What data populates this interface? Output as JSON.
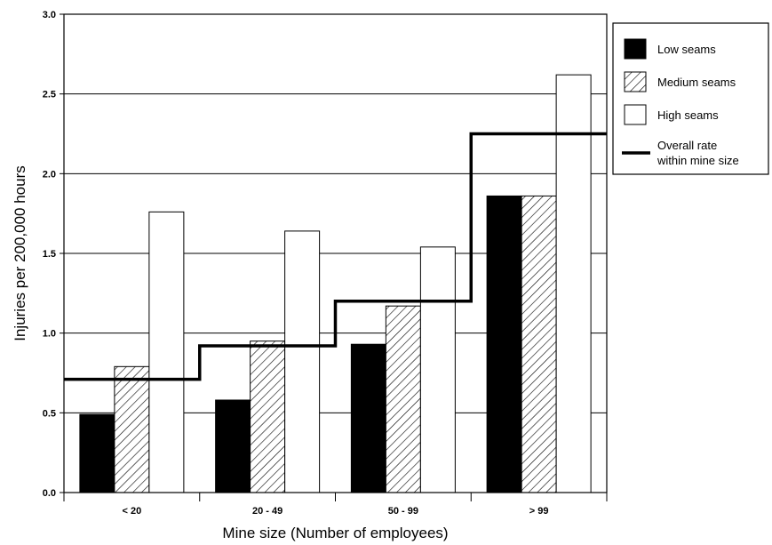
{
  "chart_data": {
    "type": "bar",
    "title": "",
    "xlabel": "Mine size (Number of employees)",
    "ylabel": "Injuries per 200,000 hours",
    "categories": [
      "< 20",
      "20 - 49",
      "50 - 99",
      "> 99"
    ],
    "ylim": [
      0,
      3.0
    ],
    "yticks": [
      "0.0",
      "0.5",
      "1.0",
      "1.5",
      "2.0",
      "2.5",
      "3.0"
    ],
    "grid": true,
    "legend_position": "right",
    "series": [
      {
        "name": "Low seams",
        "values": [
          0.49,
          0.58,
          0.93,
          1.86
        ],
        "fill": "#000000",
        "pattern": "solid"
      },
      {
        "name": "Medium seams",
        "values": [
          0.79,
          0.95,
          1.17,
          1.86
        ],
        "fill": "#ffffff",
        "pattern": "diagonal-hatch"
      },
      {
        "name": "High seams",
        "values": [
          1.76,
          1.64,
          1.54,
          2.62
        ],
        "fill": "#ffffff",
        "pattern": "none"
      }
    ],
    "overall_rate": {
      "name": "Overall rate within mine size",
      "name_lines": [
        "Overall rate",
        "within mine size"
      ],
      "values": [
        0.71,
        0.92,
        1.2,
        2.25
      ],
      "style": "step-line"
    }
  }
}
